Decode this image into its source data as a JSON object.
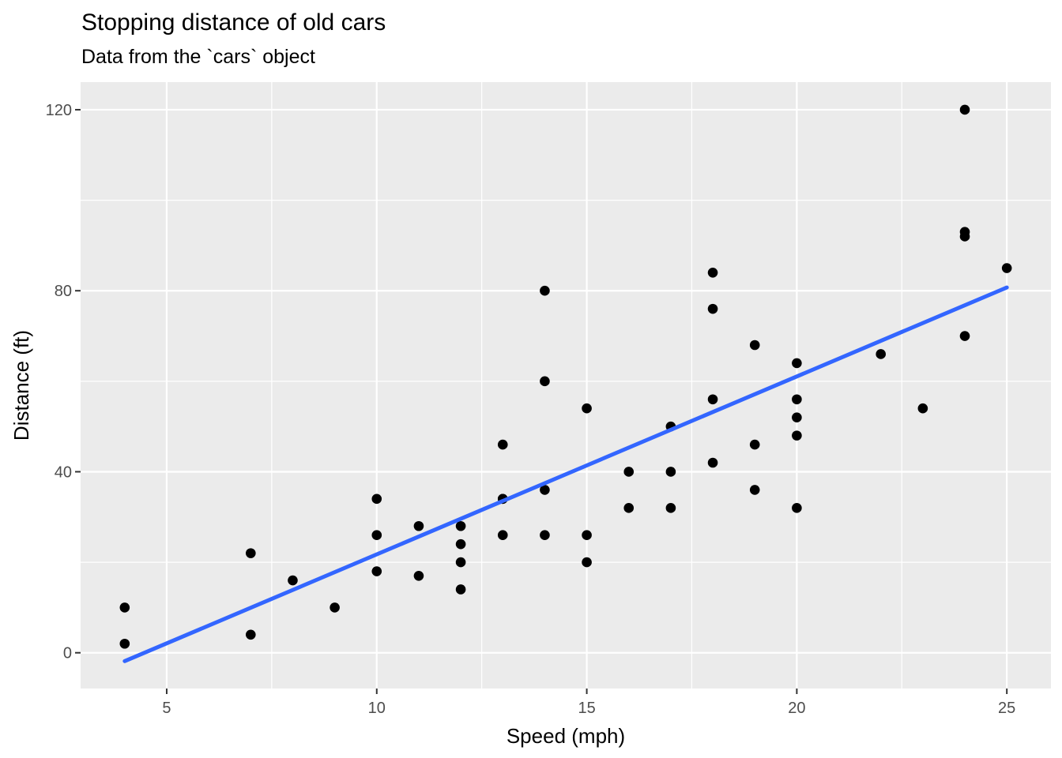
{
  "chart_data": {
    "type": "scatter",
    "title": "Stopping distance of old cars",
    "subtitle": "Data from the `cars` object",
    "xlabel": "Speed (mph)",
    "ylabel": "Distance (ft)",
    "xlim": [
      2.95,
      26.05
    ],
    "ylim": [
      -7.9,
      126.1
    ],
    "x_major_ticks": [
      5,
      10,
      15,
      20,
      25
    ],
    "x_minor_ticks": [
      7.5,
      12.5,
      17.5,
      22.5
    ],
    "y_major_ticks": [
      0,
      40,
      80,
      120
    ],
    "y_minor_ticks": [
      20,
      60,
      100
    ],
    "grid": true,
    "legend": "none",
    "points": [
      [
        4,
        2
      ],
      [
        4,
        10
      ],
      [
        7,
        4
      ],
      [
        7,
        22
      ],
      [
        8,
        16
      ],
      [
        9,
        10
      ],
      [
        10,
        18
      ],
      [
        10,
        26
      ],
      [
        10,
        34
      ],
      [
        11,
        17
      ],
      [
        11,
        28
      ],
      [
        12,
        14
      ],
      [
        12,
        20
      ],
      [
        12,
        24
      ],
      [
        12,
        28
      ],
      [
        13,
        26
      ],
      [
        13,
        34
      ],
      [
        13,
        34
      ],
      [
        13,
        46
      ],
      [
        14,
        26
      ],
      [
        14,
        36
      ],
      [
        14,
        60
      ],
      [
        14,
        80
      ],
      [
        15,
        20
      ],
      [
        15,
        26
      ],
      [
        15,
        54
      ],
      [
        16,
        32
      ],
      [
        16,
        40
      ],
      [
        17,
        32
      ],
      [
        17,
        40
      ],
      [
        17,
        50
      ],
      [
        18,
        42
      ],
      [
        18,
        56
      ],
      [
        18,
        76
      ],
      [
        18,
        84
      ],
      [
        19,
        36
      ],
      [
        19,
        46
      ],
      [
        19,
        68
      ],
      [
        20,
        32
      ],
      [
        20,
        48
      ],
      [
        20,
        52
      ],
      [
        20,
        56
      ],
      [
        20,
        64
      ],
      [
        22,
        66
      ],
      [
        23,
        54
      ],
      [
        24,
        70
      ],
      [
        24,
        92
      ],
      [
        24,
        93
      ],
      [
        24,
        120
      ],
      [
        25,
        85
      ]
    ],
    "trend_line": {
      "model": "linear-fit",
      "x": [
        4,
        25
      ],
      "y": [
        -1.85,
        80.72
      ]
    },
    "colors": {
      "panel_bg": "#EBEBEB",
      "grid": "#FFFFFF",
      "point": "#000000",
      "line": "#3366FF",
      "tick_mark": "#333333",
      "tick_label": "#4D4D4D",
      "axis_title": "#000000",
      "title": "#000000"
    }
  }
}
